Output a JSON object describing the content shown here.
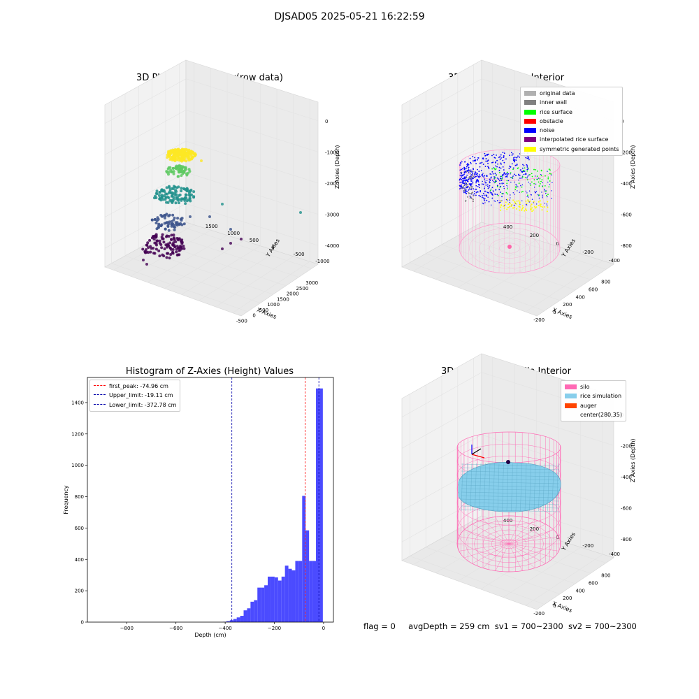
{
  "suptitle": "DJSAD05 2025-05-21 16:22:59",
  "footer": {
    "flag": "flag = 0",
    "avg_depth": "avgDepth = 259 cm",
    "sv1": "sv1 = 700~2300",
    "sv2": "sv2 = 700~2300"
  },
  "chart_data": [
    {
      "type": "scatter",
      "title": "3D Plot of Silo Interior(row data)",
      "xlabel": "X Axies",
      "ylabel": "Y Axies",
      "zlabel": "Z Axies (Depth)",
      "x_ticks": [
        "-500",
        "0",
        "500",
        "1000",
        "1500",
        "2000",
        "2500",
        "3000"
      ],
      "y_ticks": [
        "-1000",
        "-500",
        "0",
        "500",
        "1000",
        "1500"
      ],
      "z_ticks": [
        "0",
        "-1000",
        "-2000",
        "-3000",
        "-4000"
      ],
      "colormap": "viridis",
      "point_colors": [
        "#440154",
        "#3b528b",
        "#21918c",
        "#5ec962",
        "#fde725"
      ],
      "clusters": [
        {
          "z_range": [
            -500,
            -200
          ],
          "color": "#fde725"
        },
        {
          "z_range": [
            -1400,
            -900
          ],
          "color": "#5ec962"
        },
        {
          "z_range": [
            -2800,
            -1900
          ],
          "color": "#21918c"
        },
        {
          "z_range": [
            -3800,
            -3000
          ],
          "color": "#3b528b"
        },
        {
          "z_range": [
            -4800,
            -4000
          ],
          "color": "#440154"
        }
      ]
    },
    {
      "type": "scatter",
      "title": "3D classify of Silo Interior",
      "xlabel": "X Axies",
      "ylabel": "Y Axies",
      "zlabel": "Z Axies (Depth)",
      "x_ticks": [
        "-200",
        "0",
        "200",
        "400",
        "600",
        "800"
      ],
      "y_ticks": [
        "-400",
        "-200",
        "0",
        "200",
        "400"
      ],
      "z_ticks": [
        "0",
        "-200",
        "-400",
        "-600",
        "-800"
      ],
      "legend_position": "upper right",
      "legend": [
        {
          "label": "original data",
          "color": "#b0b0b0"
        },
        {
          "label": "inner wall",
          "color": "#808080"
        },
        {
          "label": "rice surface",
          "color": "#00ff00"
        },
        {
          "label": "obstacle",
          "color": "#ff0000"
        },
        {
          "label": "noise",
          "color": "#0000ff"
        },
        {
          "label": "interpolated rice surface",
          "color": "#800080"
        },
        {
          "label": "symmetric generated points",
          "color": "#ffff00"
        }
      ],
      "silo_wire_color": "#ff99cc"
    },
    {
      "type": "bar",
      "title": "Histogram of Z-Axies (Height) Values",
      "xlabel": "Depth (cm)",
      "ylabel": "Frequency",
      "xlim": [
        -960,
        40
      ],
      "ylim": [
        0,
        1560
      ],
      "x_ticks": [
        -800,
        -600,
        -400,
        -200,
        0
      ],
      "y_ticks": [
        0,
        200,
        400,
        600,
        800,
        1000,
        1200,
        1400
      ],
      "bar_color": "#4b4bff",
      "bin_width": 14,
      "bins": [
        {
          "x": -402,
          "value": 2
        },
        {
          "x": -388,
          "value": 6
        },
        {
          "x": -374,
          "value": 12
        },
        {
          "x": -360,
          "value": 20
        },
        {
          "x": -346,
          "value": 30
        },
        {
          "x": -332,
          "value": 40
        },
        {
          "x": -318,
          "value": 75
        },
        {
          "x": -304,
          "value": 88
        },
        {
          "x": -290,
          "value": 130
        },
        {
          "x": -276,
          "value": 140
        },
        {
          "x": -262,
          "value": 220
        },
        {
          "x": -248,
          "value": 220
        },
        {
          "x": -234,
          "value": 235
        },
        {
          "x": -220,
          "value": 290
        },
        {
          "x": -206,
          "value": 290
        },
        {
          "x": -192,
          "value": 285
        },
        {
          "x": -178,
          "value": 265
        },
        {
          "x": -164,
          "value": 290
        },
        {
          "x": -150,
          "value": 360
        },
        {
          "x": -136,
          "value": 340
        },
        {
          "x": -122,
          "value": 330
        },
        {
          "x": -108,
          "value": 390
        },
        {
          "x": -94,
          "value": 390
        },
        {
          "x": -80,
          "value": 805
        },
        {
          "x": -66,
          "value": 585
        },
        {
          "x": -52,
          "value": 390
        },
        {
          "x": -38,
          "value": 390
        },
        {
          "x": -24,
          "value": 1490
        },
        {
          "x": -10,
          "value": 1490
        }
      ],
      "vlines": [
        {
          "label": "first_peak: -74.96 cm",
          "x": -74.96,
          "color": "#ff0000"
        },
        {
          "label": "Upper_limit: -19.11 cm",
          "x": -19.11,
          "color": "#0000aa"
        },
        {
          "label": "Lower_limit: -372.78 cm",
          "x": -372.78,
          "color": "#0000aa"
        }
      ],
      "legend_position": "upper left"
    },
    {
      "type": "area",
      "title": "3D simulation of Silo Interior",
      "xlabel": "X Axies",
      "ylabel": "Y Axies",
      "zlabel": "Z Axies (Depth)",
      "x_ticks": [
        "-200",
        "0",
        "200",
        "400",
        "600",
        "800"
      ],
      "y_ticks": [
        "-400",
        "-200",
        "0",
        "200",
        "400"
      ],
      "z_ticks": [
        "0",
        "-200",
        "-400",
        "-600",
        "-800"
      ],
      "legend_position": "upper right",
      "legend": [
        {
          "label": "silo",
          "color": "#ff69b4"
        },
        {
          "label": "rice simulation",
          "color": "#87ceeb"
        },
        {
          "label": "auger",
          "color": "#ff4500"
        },
        {
          "label": "center(280,35)",
          "color": ""
        }
      ]
    }
  ]
}
